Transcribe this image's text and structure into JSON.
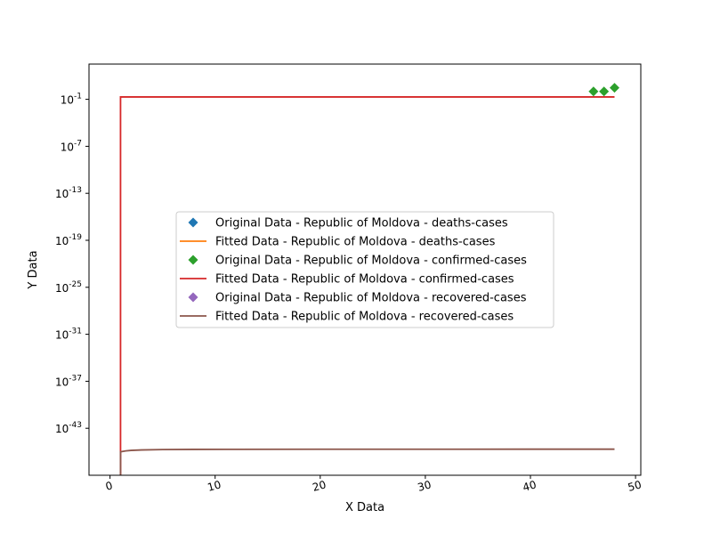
{
  "chart_data": {
    "type": "line",
    "title": "",
    "xlabel": "X Data",
    "ylabel": "Y Data",
    "xlim": [
      -2,
      50.5
    ],
    "ylim_log10": [
      -49,
      3.5
    ],
    "y_scale": "log",
    "grid": false,
    "legend_placement": "center",
    "x_ticks": [
      0,
      10,
      20,
      30,
      40,
      50
    ],
    "y_ticks": [
      {
        "exp": -1,
        "label": "-1"
      },
      {
        "exp": -7,
        "label": "-7"
      },
      {
        "exp": -13,
        "label": "-13"
      },
      {
        "exp": -19,
        "label": "-19"
      },
      {
        "exp": -25,
        "label": "-25"
      },
      {
        "exp": -31,
        "label": "-31"
      },
      {
        "exp": -37,
        "label": "-37"
      },
      {
        "exp": -43,
        "label": "-43"
      }
    ],
    "series": [
      {
        "name": "Original Data - Republic of Moldova - deaths-cases",
        "kind": "points",
        "color": "#1f77b4",
        "x": [],
        "y": []
      },
      {
        "name": "Fitted Data - Republic of Moldova - deaths-cases",
        "kind": "line",
        "color": "#ff7f0e",
        "x": [],
        "y": []
      },
      {
        "name": "Original Data - Republic of Moldova - confirmed-cases",
        "kind": "points",
        "color": "#2ca02c",
        "x": [
          46,
          47,
          48
        ],
        "y": [
          1,
          1,
          3
        ]
      },
      {
        "name": "Fitted Data - Republic of Moldova - confirmed-cases",
        "kind": "line",
        "color": "#d62728",
        "x": [
          1,
          1,
          48
        ],
        "y": [
          1e-50,
          0.2,
          0.2
        ]
      },
      {
        "name": "Original Data - Republic of Moldova - recovered-cases",
        "kind": "points",
        "color": "#9467bd",
        "x": [],
        "y": []
      },
      {
        "name": "Fitted Data - Republic of Moldova - recovered-cases",
        "kind": "line",
        "color": "#8c564b",
        "x": [
          1,
          1,
          1.5,
          2,
          3,
          5,
          8,
          12,
          20,
          30,
          40,
          48
        ],
        "y": [
          1e-50,
          1e-46,
          1.3e-46,
          1.5e-46,
          1.7e-46,
          1.9e-46,
          2e-46,
          2.05e-46,
          2.1e-46,
          2.12e-46,
          2.13e-46,
          2.14e-46
        ]
      }
    ]
  }
}
